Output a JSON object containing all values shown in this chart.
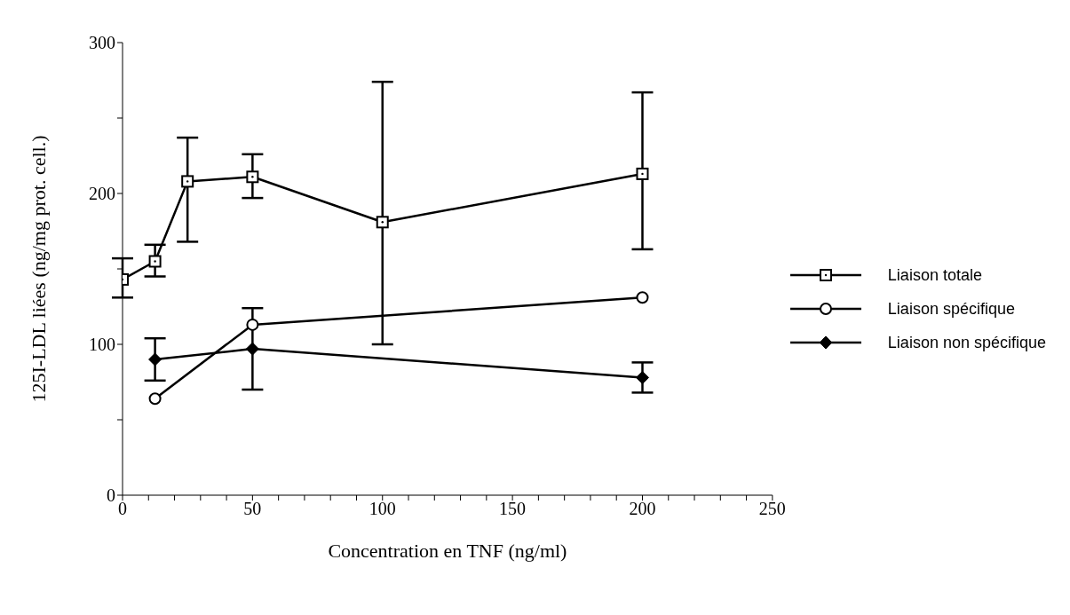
{
  "chart_data": {
    "type": "line",
    "xlabel": "Concentration en TNF (ng/ml)",
    "ylabel": "125I-LDL liées (ng/mg prot. cell.)",
    "xlim": [
      0,
      250
    ],
    "xticks": [
      0,
      {
        "value": 10,
        "label": null
      },
      {
        "value": 20,
        "label": null
      },
      {
        "value": 30,
        "label": null
      },
      {
        "value": 40,
        "label": null
      },
      50,
      {
        "value": 60,
        "label": null
      },
      {
        "value": 70,
        "label": null
      },
      {
        "value": 80,
        "label": null
      },
      {
        "value": 90,
        "label": null
      },
      100,
      {
        "value": 110,
        "label": null
      },
      {
        "value": 120,
        "label": null
      },
      {
        "value": 130,
        "label": null
      },
      {
        "value": 140,
        "label": null
      },
      150,
      {
        "value": 160,
        "label": null
      },
      {
        "value": 170,
        "label": null
      },
      {
        "value": 180,
        "label": null
      },
      {
        "value": 190,
        "label": null
      },
      200,
      {
        "value": 210,
        "label": null
      },
      {
        "value": 220,
        "label": null
      },
      {
        "value": 230,
        "label": null
      },
      {
        "value": 240,
        "label": null
      },
      250
    ],
    "ylim": [
      0,
      300
    ],
    "yticks": [
      0,
      {
        "value": 50,
        "label": null
      },
      100,
      {
        "value": 150,
        "label": null
      },
      200,
      {
        "value": 250,
        "label": null
      },
      300
    ],
    "grid": false,
    "legend": "right",
    "line_style": "solid",
    "series": [
      {
        "name": "Liaison totale",
        "color": "#000000",
        "marker": "square",
        "x": [
          0,
          12.5,
          25,
          50,
          100,
          200
        ],
        "values": [
          143,
          155,
          208,
          211,
          181,
          213
        ],
        "errors": [
          [
            131,
            157
          ],
          [
            145,
            166
          ],
          [
            168,
            237
          ],
          [
            197,
            226
          ],
          [
            100,
            274
          ],
          [
            163,
            267
          ]
        ]
      },
      {
        "name": "Liaison spécifique",
        "color": "#000000",
        "marker": "circle",
        "x": [
          12.5,
          50,
          200
        ],
        "values": [
          64,
          113,
          131
        ]
      },
      {
        "name": "Liaison non spécifique",
        "color": "#000000",
        "marker": "diamond",
        "x": [
          12.5,
          50,
          200
        ],
        "values": [
          90,
          97,
          78
        ],
        "errors": [
          [
            76,
            104
          ],
          [
            70,
            124
          ],
          [
            68,
            88
          ]
        ]
      }
    ]
  }
}
